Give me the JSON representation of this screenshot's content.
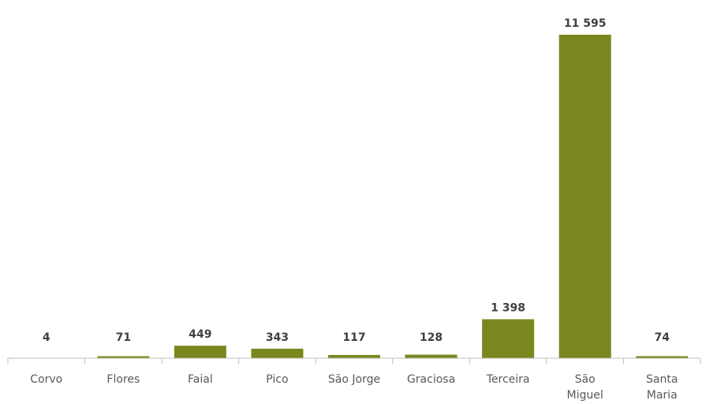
{
  "chart_data": {
    "type": "bar",
    "categories": [
      [
        "Corvo"
      ],
      [
        "Flores"
      ],
      [
        "Faial"
      ],
      [
        "Pico"
      ],
      [
        "São Jorge"
      ],
      [
        "Graciosa"
      ],
      [
        "Terceira"
      ],
      [
        "São",
        "Miguel"
      ],
      [
        "Santa",
        "Maria"
      ]
    ],
    "values": [
      4,
      71,
      449,
      343,
      117,
      128,
      1398,
      11595,
      74
    ],
    "value_labels": [
      "4",
      "71",
      "449",
      "343",
      "117",
      "128",
      "1 398",
      "11 595",
      "74"
    ],
    "title": "",
    "xlabel": "",
    "ylabel": "",
    "ylim": [
      0,
      11595
    ],
    "grid": false,
    "legend": "none",
    "bar_color": "#7A871E",
    "axis_color": "#BFBFBF"
  }
}
